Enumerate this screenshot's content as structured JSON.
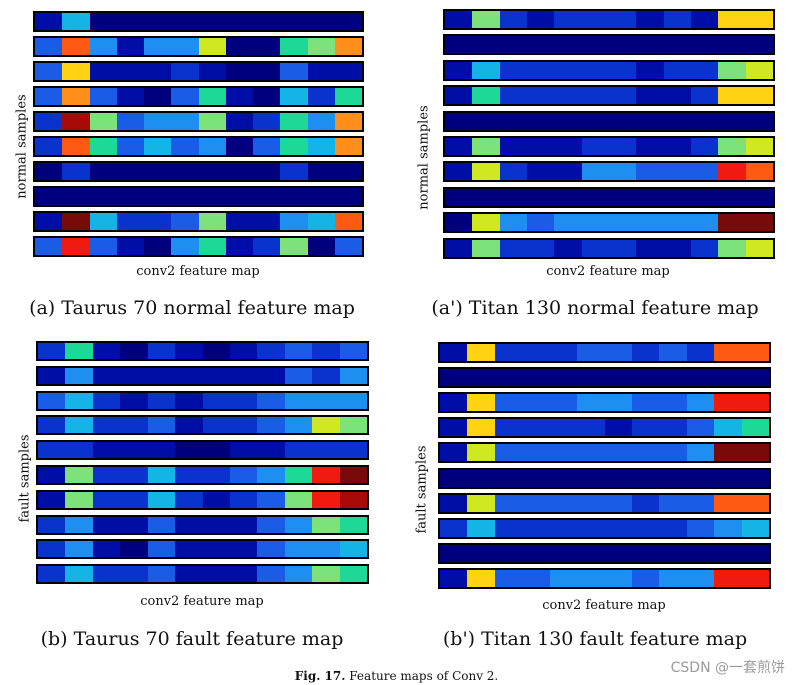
{
  "palette": {
    "0": "#00007e",
    "1": "#000ea8",
    "2": "#0a32cc",
    "3": "#1a5ce6",
    "4": "#1e8ef0",
    "5": "#14b4e6",
    "6": "#1ed898",
    "7": "#7ee27a",
    "8": "#cfe822",
    "9": "#ffd214",
    "10": "#ff8e1a",
    "11": "#ff5a14",
    "12": "#f01a10",
    "13": "#a80a0a",
    "14": "#780a0a",
    "15": "#000096"
  },
  "panels": [
    {
      "id": "a",
      "caption": "(a) Taurus 70 normal feature map",
      "ylabel": "normal samples",
      "xlabel": "conv2 feature map",
      "rows": [
        [
          1,
          5,
          0,
          0,
          0,
          0,
          0,
          0,
          0,
          0,
          0,
          0
        ],
        [
          3,
          11,
          4,
          1,
          4,
          4,
          8,
          0,
          0,
          6,
          7,
          10
        ],
        [
          3,
          9,
          1,
          1,
          1,
          2,
          1,
          0,
          0,
          3,
          1,
          1
        ],
        [
          3,
          10,
          3,
          1,
          0,
          3,
          6,
          1,
          0,
          5,
          2,
          6
        ],
        [
          2,
          13,
          7,
          3,
          4,
          4,
          7,
          1,
          2,
          6,
          4,
          10
        ],
        [
          2,
          11,
          6,
          3,
          5,
          3,
          4,
          0,
          3,
          6,
          5,
          10
        ],
        [
          0,
          2,
          0,
          0,
          0,
          0,
          0,
          0,
          0,
          2,
          0,
          0
        ],
        [
          0,
          0,
          0,
          0,
          0,
          0,
          0,
          0,
          0,
          0,
          0,
          0
        ],
        [
          1,
          14,
          5,
          2,
          2,
          3,
          7,
          1,
          1,
          4,
          5,
          11
        ],
        [
          3,
          12,
          3,
          1,
          0,
          4,
          6,
          1,
          2,
          7,
          0,
          3
        ]
      ]
    },
    {
      "id": "a2",
      "caption": "(a') Titan 130 normal feature map",
      "ylabel": "normal samples",
      "xlabel": "conv2 feature map",
      "rows": [
        [
          1,
          7,
          2,
          1,
          2,
          2,
          2,
          1,
          2,
          1,
          9,
          9
        ],
        [
          0,
          0,
          0,
          0,
          0,
          0,
          0,
          0,
          0,
          0,
          0,
          0
        ],
        [
          1,
          5,
          2,
          2,
          2,
          2,
          2,
          1,
          2,
          2,
          7,
          8
        ],
        [
          1,
          6,
          2,
          2,
          2,
          2,
          2,
          1,
          1,
          2,
          9,
          9
        ],
        [
          0,
          0,
          0,
          0,
          0,
          0,
          0,
          0,
          0,
          0,
          0,
          0
        ],
        [
          1,
          7,
          1,
          1,
          1,
          2,
          2,
          1,
          1,
          2,
          7,
          8
        ],
        [
          1,
          8,
          2,
          1,
          1,
          4,
          4,
          3,
          3,
          3,
          12,
          11
        ],
        [
          0,
          0,
          0,
          0,
          0,
          0,
          0,
          0,
          0,
          0,
          0,
          0
        ],
        [
          0,
          8,
          4,
          3,
          4,
          4,
          4,
          4,
          4,
          4,
          14,
          14
        ],
        [
          1,
          7,
          2,
          2,
          1,
          2,
          2,
          1,
          1,
          2,
          7,
          8
        ]
      ]
    },
    {
      "id": "b",
      "caption": "(b) Taurus 70 fault feature map",
      "ylabel": "fault samples",
      "xlabel": "conv2 feature map",
      "rows": [
        [
          2,
          6,
          1,
          0,
          2,
          1,
          0,
          1,
          2,
          3,
          2,
          3
        ],
        [
          1,
          4,
          1,
          1,
          1,
          1,
          1,
          1,
          1,
          3,
          2,
          4
        ],
        [
          3,
          5,
          2,
          1,
          2,
          1,
          2,
          2,
          3,
          4,
          4,
          4
        ],
        [
          2,
          5,
          2,
          2,
          3,
          1,
          2,
          2,
          3,
          4,
          8,
          7
        ],
        [
          2,
          2,
          1,
          1,
          1,
          0,
          0,
          1,
          1,
          2,
          2,
          2
        ],
        [
          1,
          7,
          2,
          2,
          5,
          2,
          2,
          3,
          4,
          6,
          12,
          14
        ],
        [
          1,
          7,
          2,
          2,
          5,
          2,
          1,
          2,
          3,
          7,
          12,
          13
        ],
        [
          2,
          4,
          1,
          1,
          3,
          1,
          1,
          1,
          3,
          4,
          7,
          6
        ],
        [
          2,
          4,
          1,
          0,
          3,
          1,
          1,
          1,
          3,
          4,
          4,
          5
        ],
        [
          2,
          5,
          2,
          2,
          3,
          1,
          1,
          1,
          3,
          4,
          7,
          6
        ]
      ]
    },
    {
      "id": "b2",
      "caption": "(b') Titan 130 fault feature map",
      "ylabel": "fault samples",
      "xlabel": "conv2 feature map",
      "rows": [
        [
          1,
          9,
          2,
          2,
          2,
          3,
          3,
          2,
          3,
          2,
          11,
          11
        ],
        [
          0,
          0,
          0,
          0,
          0,
          0,
          0,
          0,
          0,
          0,
          0,
          0
        ],
        [
          1,
          9,
          3,
          3,
          3,
          4,
          4,
          3,
          3,
          4,
          12,
          12
        ],
        [
          1,
          9,
          2,
          2,
          2,
          2,
          1,
          2,
          2,
          3,
          5,
          6
        ],
        [
          1,
          8,
          3,
          3,
          3,
          3,
          3,
          3,
          3,
          4,
          14,
          14
        ],
        [
          0,
          0,
          0,
          0,
          0,
          0,
          0,
          0,
          0,
          0,
          0,
          0
        ],
        [
          1,
          8,
          3,
          3,
          3,
          3,
          3,
          2,
          3,
          3,
          11,
          11
        ],
        [
          2,
          5,
          2,
          2,
          2,
          2,
          2,
          2,
          2,
          3,
          4,
          5
        ],
        [
          0,
          0,
          0,
          0,
          0,
          0,
          0,
          0,
          0,
          0,
          0,
          0
        ],
        [
          1,
          9,
          3,
          3,
          4,
          4,
          4,
          3,
          4,
          4,
          12,
          12
        ]
      ]
    }
  ],
  "figure": {
    "label": "Fig. 17.",
    "caption": "Feature maps of Conv 2."
  },
  "watermark": "CSDN @一套煎饼"
}
